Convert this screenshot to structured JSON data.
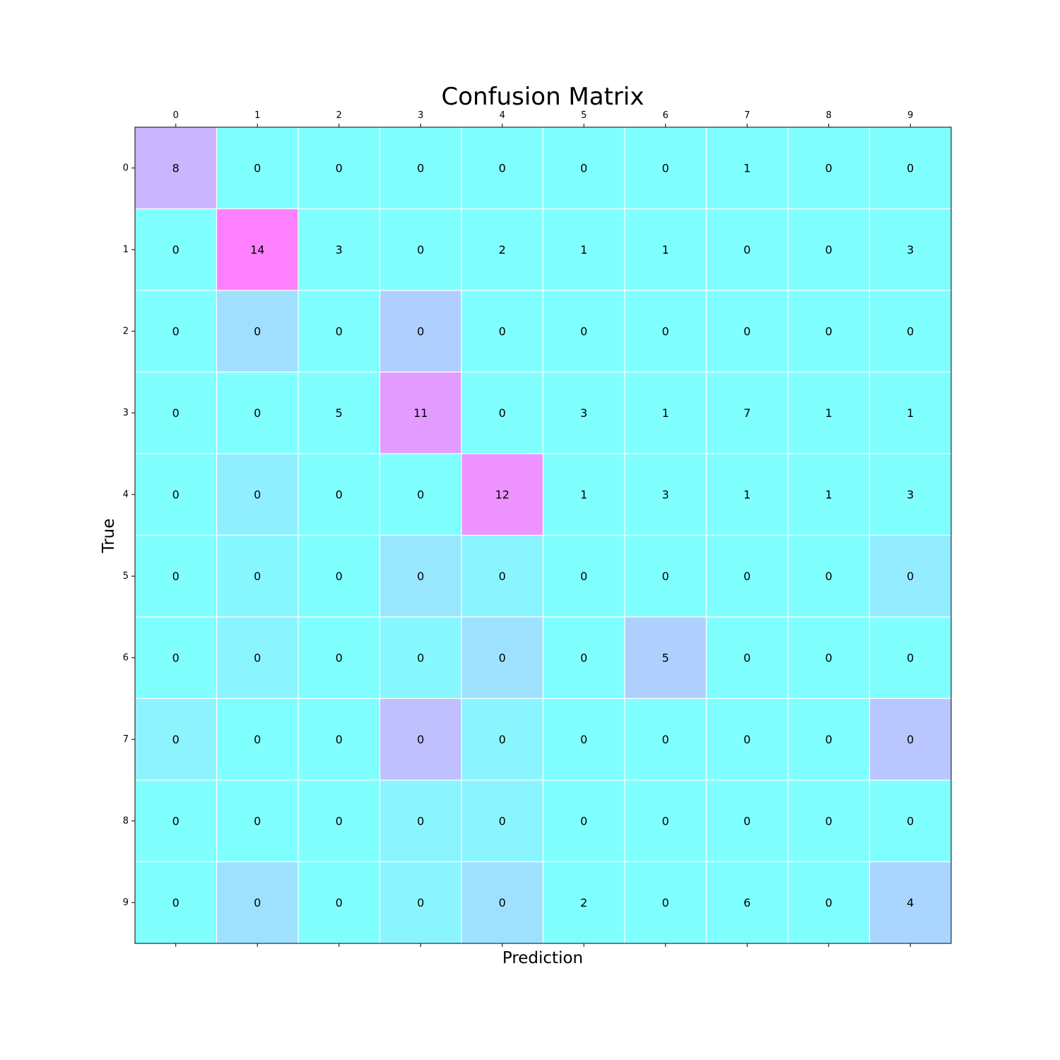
{
  "chart_data": {
    "type": "heatmap",
    "title": "Confusion Matrix",
    "xlabel": "Prediction",
    "ylabel": "True",
    "x_ticks": [
      "0",
      "1",
      "2",
      "3",
      "4",
      "5",
      "6",
      "7",
      "8",
      "9"
    ],
    "y_ticks": [
      "0",
      "1",
      "2",
      "3",
      "4",
      "5",
      "6",
      "7",
      "8",
      "9"
    ],
    "x_tick_position": "top",
    "grid": true,
    "colormap": "cool",
    "colormap_colors": [
      "#00ffff",
      "#ff00ff"
    ],
    "cell_alpha": 0.5,
    "gridline_color": "#ffffff",
    "values": [
      [
        8,
        0,
        0,
        0,
        0,
        0,
        0,
        1,
        0,
        0
      ],
      [
        0,
        14,
        3,
        0,
        2,
        1,
        1,
        0,
        0,
        3
      ],
      [
        0,
        0,
        0,
        0,
        0,
        0,
        0,
        0,
        0,
        0
      ],
      [
        0,
        0,
        5,
        11,
        0,
        3,
        1,
        7,
        1,
        1
      ],
      [
        0,
        0,
        0,
        0,
        12,
        1,
        3,
        1,
        1,
        3
      ],
      [
        0,
        0,
        0,
        0,
        0,
        0,
        0,
        0,
        0,
        0
      ],
      [
        0,
        0,
        0,
        0,
        0,
        0,
        5,
        0,
        0,
        0
      ],
      [
        0,
        0,
        0,
        0,
        0,
        0,
        0,
        0,
        0,
        0
      ],
      [
        0,
        0,
        0,
        0,
        0,
        0,
        0,
        0,
        0,
        0
      ],
      [
        0,
        0,
        0,
        0,
        0,
        2,
        0,
        6,
        0,
        4
      ]
    ],
    "intensity": [
      [
        0.58,
        0.0,
        0.0,
        0.0,
        0.0,
        0.0,
        0.0,
        0.0,
        0.0,
        0.0
      ],
      [
        0.0,
        1.0,
        0.0,
        0.0,
        0.0,
        0.0,
        0.0,
        0.0,
        0.0,
        0.0
      ],
      [
        0.0,
        0.25,
        0.0,
        0.38,
        0.0,
        0.0,
        0.0,
        0.0,
        0.0,
        0.0
      ],
      [
        0.0,
        0.0,
        0.0,
        0.79,
        0.0,
        0.0,
        0.0,
        0.0,
        0.0,
        0.0
      ],
      [
        0.0,
        0.13,
        0.0,
        0.0,
        0.86,
        0.0,
        0.0,
        0.0,
        0.0,
        0.0
      ],
      [
        0.0,
        0.06,
        0.0,
        0.2,
        0.08,
        0.0,
        0.0,
        0.0,
        0.0,
        0.15
      ],
      [
        0.0,
        0.08,
        0.0,
        0.06,
        0.24,
        0.0,
        0.37,
        0.0,
        0.0,
        0.0
      ],
      [
        0.1,
        0.0,
        0.0,
        0.5,
        0.08,
        0.0,
        0.0,
        0.0,
        0.0,
        0.45
      ],
      [
        0.0,
        0.0,
        0.0,
        0.08,
        0.08,
        0.0,
        0.0,
        0.0,
        0.0,
        0.0
      ],
      [
        0.0,
        0.24,
        0.0,
        0.08,
        0.24,
        0.0,
        0.0,
        0.0,
        0.0,
        0.33
      ]
    ]
  }
}
